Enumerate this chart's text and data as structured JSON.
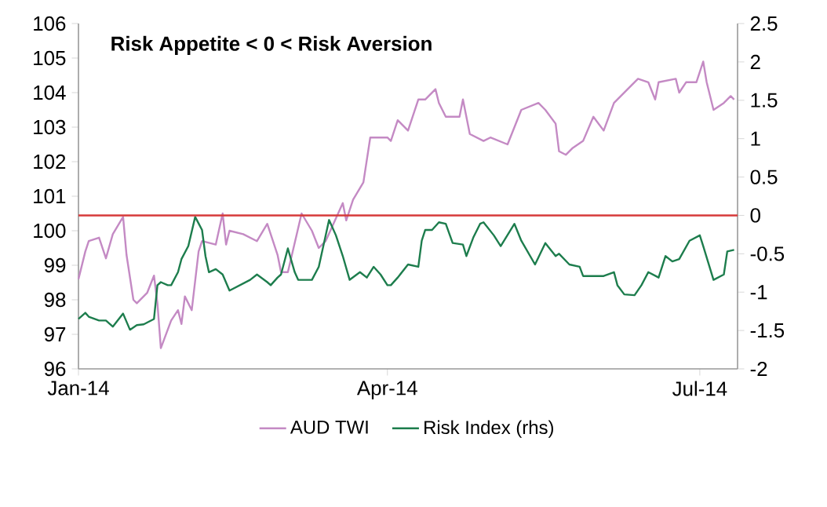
{
  "chart_data": {
    "type": "line",
    "title": "Risk Appetite < 0 < Risk Aversion",
    "xlim": [
      "2014-01-01",
      "2014-07-12"
    ],
    "xticks": [
      {
        "value": "2014-01-01",
        "label": "Jan-14"
      },
      {
        "value": "2014-04-01",
        "label": "Apr-14"
      },
      {
        "value": "2014-07-01",
        "label": "Jul-14"
      }
    ],
    "ylim": [
      96,
      106
    ],
    "yticks": [
      96,
      97,
      98,
      99,
      100,
      101,
      102,
      103,
      104,
      105,
      106
    ],
    "y2lim": [
      -2,
      2.5
    ],
    "y2ticks": [
      -2,
      -1.5,
      -1,
      -0.5,
      0,
      0.5,
      1,
      1.5,
      2,
      2.5
    ],
    "legend": "bottom",
    "ref_lines": [
      {
        "axis": "y2",
        "value": 0,
        "color": "#d63a3a"
      }
    ],
    "series": [
      {
        "name": "AUD TWI",
        "color": "#c48ac4",
        "x": [
          "2014-01-01",
          "2014-01-03",
          "2014-01-04",
          "2014-01-07",
          "2014-01-09",
          "2014-01-11",
          "2014-01-14",
          "2014-01-15",
          "2014-01-17",
          "2014-01-18",
          "2014-01-21",
          "2014-01-23",
          "2014-01-24",
          "2014-01-25",
          "2014-01-28",
          "2014-01-30",
          "2014-01-31",
          "2014-02-01",
          "2014-02-03",
          "2014-02-05",
          "2014-02-06",
          "2014-02-10",
          "2014-02-12",
          "2014-02-13",
          "2014-02-14",
          "2014-02-18",
          "2014-02-22",
          "2014-02-25",
          "2014-02-28",
          "2014-03-01",
          "2014-03-03",
          "2014-03-07",
          "2014-03-10",
          "2014-03-12",
          "2014-03-14",
          "2014-03-19",
          "2014-03-20",
          "2014-03-22",
          "2014-03-25",
          "2014-03-27",
          "2014-04-01",
          "2014-04-02",
          "2014-04-04",
          "2014-04-07",
          "2014-04-10",
          "2014-04-12",
          "2014-04-15",
          "2014-04-16",
          "2014-04-18",
          "2014-04-22",
          "2014-04-23",
          "2014-04-25",
          "2014-04-29",
          "2014-05-01",
          "2014-05-06",
          "2014-05-08",
          "2014-05-10",
          "2014-05-15",
          "2014-05-17",
          "2014-05-20",
          "2014-05-21",
          "2014-05-23",
          "2014-05-25",
          "2014-05-28",
          "2014-05-31",
          "2014-06-03",
          "2014-06-06",
          "2014-06-11",
          "2014-06-13",
          "2014-06-16",
          "2014-06-18",
          "2014-06-19",
          "2014-06-24",
          "2014-06-25",
          "2014-06-27",
          "2014-06-30",
          "2014-07-02",
          "2014-07-03",
          "2014-07-05",
          "2014-07-08",
          "2014-07-10",
          "2014-07-11"
        ],
        "values": [
          98.6,
          99.4,
          99.7,
          99.8,
          99.2,
          99.9,
          100.4,
          99.3,
          98.0,
          97.9,
          98.2,
          98.7,
          97.9,
          96.6,
          97.4,
          97.7,
          97.3,
          98.1,
          97.7,
          99.4,
          99.7,
          99.6,
          100.5,
          99.6,
          100.0,
          99.9,
          99.7,
          100.2,
          99.3,
          98.8,
          98.8,
          100.5,
          100.0,
          99.5,
          99.7,
          100.8,
          100.3,
          100.9,
          101.4,
          102.7,
          102.7,
          102.6,
          103.2,
          102.9,
          103.8,
          103.8,
          104.1,
          103.7,
          103.3,
          103.3,
          103.8,
          102.8,
          102.6,
          102.7,
          102.5,
          103.0,
          103.5,
          103.7,
          103.5,
          103.1,
          102.3,
          102.2,
          102.4,
          102.6,
          103.3,
          102.9,
          103.7,
          104.2,
          104.4,
          104.3,
          103.8,
          104.3,
          104.4,
          104.0,
          104.3,
          104.3,
          104.9,
          104.3,
          103.5,
          103.7,
          103.9,
          103.8
        ]
      },
      {
        "name": "Risk Index (rhs)",
        "color": "#1d7d4d",
        "axis": "y2",
        "x": [
          "2014-01-01",
          "2014-01-03",
          "2014-01-04",
          "2014-01-07",
          "2014-01-09",
          "2014-01-11",
          "2014-01-14",
          "2014-01-16",
          "2014-01-18",
          "2014-01-20",
          "2014-01-23",
          "2014-01-24",
          "2014-01-25",
          "2014-01-27",
          "2014-01-28",
          "2014-01-30",
          "2014-01-31",
          "2014-02-02",
          "2014-02-04",
          "2014-02-06",
          "2014-02-07",
          "2014-02-08",
          "2014-02-10",
          "2014-02-12",
          "2014-02-14",
          "2014-02-17",
          "2014-02-20",
          "2014-02-22",
          "2014-02-25",
          "2014-02-26",
          "2014-02-28",
          "2014-03-01",
          "2014-03-03",
          "2014-03-05",
          "2014-03-06",
          "2014-03-10",
          "2014-03-12",
          "2014-03-15",
          "2014-03-17",
          "2014-03-19",
          "2014-03-21",
          "2014-03-24",
          "2014-03-26",
          "2014-03-28",
          "2014-03-30",
          "2014-04-01",
          "2014-04-02",
          "2014-04-04",
          "2014-04-07",
          "2014-04-10",
          "2014-04-11",
          "2014-04-12",
          "2014-04-14",
          "2014-04-16",
          "2014-04-18",
          "2014-04-20",
          "2014-04-23",
          "2014-04-24",
          "2014-04-26",
          "2014-04-28",
          "2014-04-29",
          "2014-05-02",
          "2014-05-04",
          "2014-05-08",
          "2014-05-10",
          "2014-05-14",
          "2014-05-17",
          "2014-05-20",
          "2014-05-21",
          "2014-05-24",
          "2014-05-27",
          "2014-05-28",
          "2014-05-31",
          "2014-06-03",
          "2014-06-06",
          "2014-06-07",
          "2014-06-09",
          "2014-06-12",
          "2014-06-14",
          "2014-06-16",
          "2014-06-19",
          "2014-06-21",
          "2014-06-23",
          "2014-06-25",
          "2014-06-28",
          "2014-07-01",
          "2014-07-02",
          "2014-07-05",
          "2014-07-08",
          "2014-07-09",
          "2014-07-11"
        ],
        "values": [
          -1.35,
          -1.27,
          -1.32,
          -1.37,
          -1.37,
          -1.45,
          -1.28,
          -1.49,
          -1.43,
          -1.42,
          -1.35,
          -0.91,
          -0.87,
          -0.91,
          -0.91,
          -0.74,
          -0.57,
          -0.4,
          -0.02,
          -0.19,
          -0.53,
          -0.74,
          -0.7,
          -0.77,
          -0.98,
          -0.91,
          -0.84,
          -0.77,
          -0.87,
          -0.91,
          -0.81,
          -0.77,
          -0.43,
          -0.74,
          -0.84,
          -0.84,
          -0.67,
          -0.06,
          -0.26,
          -0.53,
          -0.84,
          -0.74,
          -0.81,
          -0.67,
          -0.77,
          -0.91,
          -0.91,
          -0.81,
          -0.64,
          -0.67,
          -0.33,
          -0.19,
          -0.19,
          -0.09,
          -0.11,
          -0.36,
          -0.38,
          -0.53,
          -0.29,
          -0.11,
          -0.09,
          -0.26,
          -0.4,
          -0.11,
          -0.33,
          -0.64,
          -0.36,
          -0.53,
          -0.5,
          -0.64,
          -0.67,
          -0.79,
          -0.79,
          -0.79,
          -0.74,
          -0.91,
          -1.03,
          -1.04,
          -0.91,
          -0.74,
          -0.81,
          -0.53,
          -0.6,
          -0.57,
          -0.33,
          -0.26,
          -0.4,
          -0.84,
          -0.77,
          -0.47,
          -0.45
        ]
      }
    ]
  }
}
